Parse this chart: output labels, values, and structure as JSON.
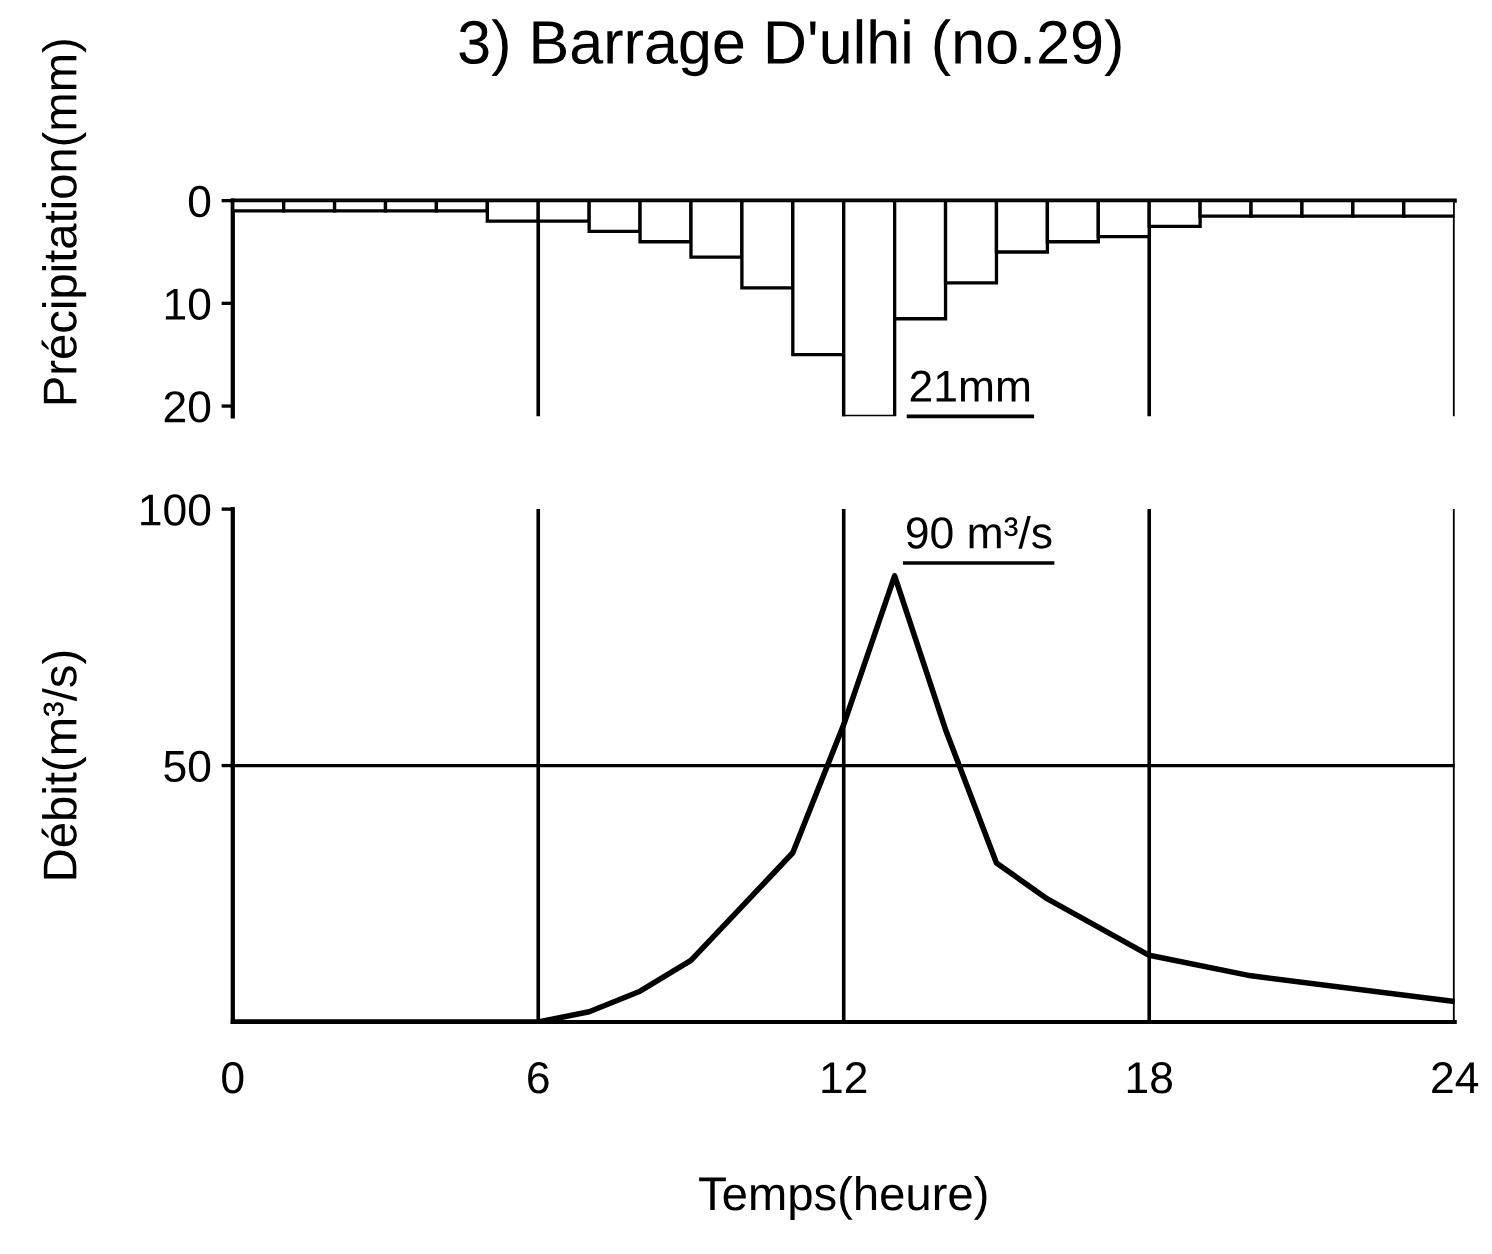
{
  "chart_data": [
    {
      "type": "histogram",
      "title": "3) Barrage D'ulhi (no.29)",
      "ylabel": "Précipitation(mm)",
      "bins": [
        0,
        1,
        2,
        3,
        4,
        5,
        6,
        7,
        8,
        9,
        10,
        11,
        12,
        13,
        14,
        15,
        16,
        17,
        18,
        19,
        20,
        21,
        22,
        23,
        24
      ],
      "values": [
        1,
        1,
        1,
        1,
        1,
        2,
        2,
        3,
        4,
        5.5,
        8.5,
        15,
        21,
        11.5,
        8,
        5,
        4,
        3.5,
        2.5,
        1.5,
        1.5,
        1.5,
        1.5,
        1.5
      ],
      "color": "#ffffff",
      "xlim": [
        0,
        24
      ],
      "xticks": [
        0,
        6,
        12,
        18,
        24
      ],
      "ylim": [
        21,
        0
      ],
      "yticks": [
        0,
        10,
        20
      ],
      "grid": "x",
      "tick_labels": "y",
      "annotations": [
        {
          "text": "21mm",
          "x": 12.5,
          "y": 21
        }
      ]
    },
    {
      "type": "line",
      "xlabel": "Temps(heure)",
      "ylabel": "Débit(m³/s)",
      "x": [
        0,
        6,
        7,
        8,
        9,
        11,
        12,
        13,
        14,
        15,
        16,
        18,
        20,
        24
      ],
      "values": [
        0,
        0,
        2,
        6,
        12,
        33,
        58,
        87,
        57,
        31,
        24,
        13,
        9,
        4
      ],
      "color": "#000000",
      "xlim": [
        0,
        24
      ],
      "xticks": [
        0,
        6,
        12,
        18,
        24
      ],
      "ylim": [
        0,
        100
      ],
      "yticks": [
        50,
        100
      ],
      "grid": "x",
      "ref_lines": [
        {
          "axis": "y",
          "value": 50
        }
      ],
      "annotations": [
        "90 m³/s"
      ]
    }
  ]
}
